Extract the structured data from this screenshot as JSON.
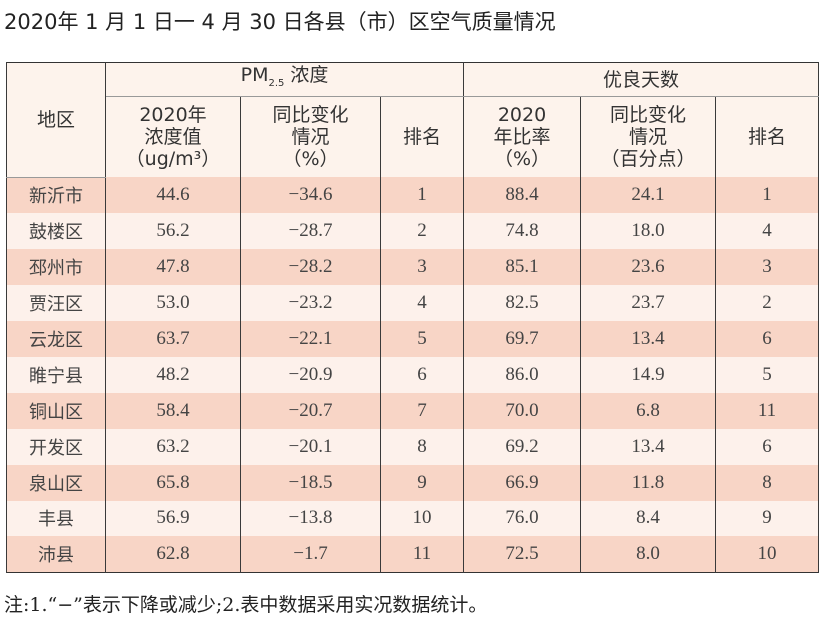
{
  "title": "2020年 1 月 1 日一 4 月 30 日各县（市）区空气质量情况",
  "header": {
    "region": "地区",
    "pm_group": "PM",
    "pm_sub": "2.5",
    "pm_suffix": " 浓度",
    "good_group": "优良天数",
    "pm_value": [
      "2020年",
      "浓度值",
      "（ug/m³）"
    ],
    "pm_change": [
      "同比变化",
      "情况",
      "（%）"
    ],
    "pm_rank": "排名",
    "good_rate": [
      "2020",
      "年比率",
      "（%）"
    ],
    "good_change": [
      "同比变化",
      "情况",
      "（百分点）"
    ],
    "good_rank": "排名"
  },
  "rows": [
    [
      "新沂市",
      "44.6",
      "−34.6",
      "1",
      "88.4",
      "24.1",
      "1"
    ],
    [
      "鼓楼区",
      "56.2",
      "−28.7",
      "2",
      "74.8",
      "18.0",
      "4"
    ],
    [
      "邳州市",
      "47.8",
      "−28.2",
      "3",
      "85.1",
      "23.6",
      "3"
    ],
    [
      "贾汪区",
      "53.0",
      "−23.2",
      "4",
      "82.5",
      "23.7",
      "2"
    ],
    [
      "云龙区",
      "63.7",
      "−22.1",
      "5",
      "69.7",
      "13.4",
      "6"
    ],
    [
      "睢宁县",
      "48.2",
      "−20.9",
      "6",
      "86.0",
      "14.9",
      "5"
    ],
    [
      "铜山区",
      "58.4",
      "−20.7",
      "7",
      "70.0",
      "6.8",
      "11"
    ],
    [
      "开发区",
      "63.2",
      "−20.1",
      "8",
      "69.2",
      "13.4",
      "6"
    ],
    [
      "泉山区",
      "65.8",
      "−18.5",
      "9",
      "66.9",
      "11.8",
      "8"
    ],
    [
      "丰县",
      "56.9",
      "−13.8",
      "10",
      "76.0",
      "8.4",
      "9"
    ],
    [
      "沛县",
      "62.8",
      "−1.7",
      "11",
      "72.5",
      "8.0",
      "10"
    ]
  ],
  "note": "注:1.“−”表示下降或减少;2.表中数据采用实况数据统计。"
}
